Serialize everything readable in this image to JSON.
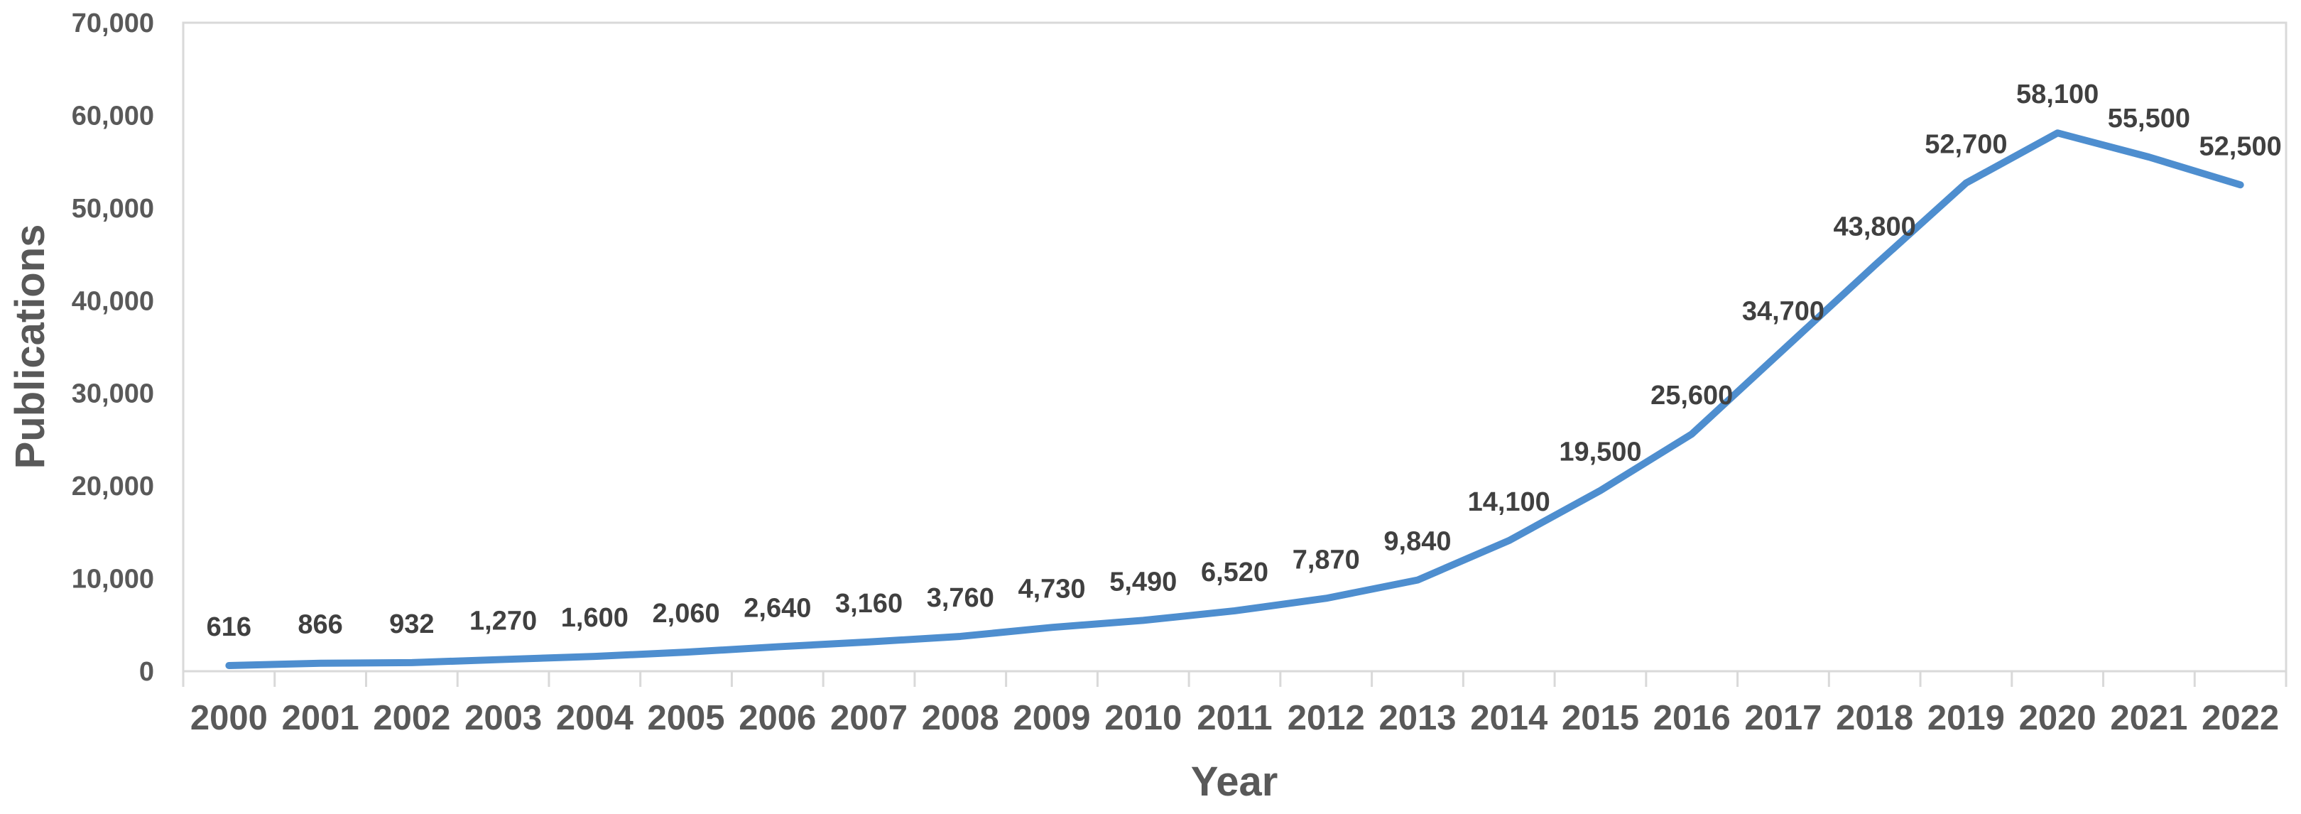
{
  "chart_data": {
    "type": "line",
    "title": "",
    "xlabel": "Year",
    "ylabel": "Publications",
    "categories": [
      "2000",
      "2001",
      "2002",
      "2003",
      "2004",
      "2005",
      "2006",
      "2007",
      "2008",
      "2009",
      "2010",
      "2011",
      "2012",
      "2013",
      "2014",
      "2015",
      "2016",
      "2017",
      "2018",
      "2019",
      "2020",
      "2021",
      "2022"
    ],
    "values": [
      616,
      866,
      932,
      1270,
      1600,
      2060,
      2640,
      3160,
      3760,
      4730,
      5490,
      6520,
      7870,
      9840,
      14100,
      19500,
      25600,
      34700,
      43800,
      52700,
      58100,
      55500,
      52500
    ],
    "data_labels": [
      "616",
      "866",
      "932",
      "1,270",
      "1,600",
      "2,060",
      "2,640",
      "3,160",
      "3,760",
      "4,730",
      "5,490",
      "6,520",
      "7,870",
      "9,840",
      "14,100",
      "19,500",
      "25,600",
      "34,700",
      "43,800",
      "52,700",
      "58,100",
      "55,500",
      "52,500"
    ],
    "series_name": "Publications",
    "y_ticks": [
      {
        "value": 0,
        "label": "0"
      },
      {
        "value": 10000,
        "label": "10,000"
      },
      {
        "value": 20000,
        "label": "20,000"
      },
      {
        "value": 30000,
        "label": "30,000"
      },
      {
        "value": 40000,
        "label": "40,000"
      },
      {
        "value": 50000,
        "label": "50,000"
      },
      {
        "value": 60000,
        "label": "60,000"
      },
      {
        "value": 70000,
        "label": "70,000"
      }
    ],
    "ylim": [
      0,
      70000
    ],
    "grid": false,
    "legend": "none",
    "markers": false,
    "colors": {
      "line": "#4E8ECF",
      "axis_line": "#D9D9D9",
      "tick_label": "#595959",
      "data_label": "#404040",
      "axis_title": "#595959",
      "background": "#FFFFFF"
    }
  }
}
